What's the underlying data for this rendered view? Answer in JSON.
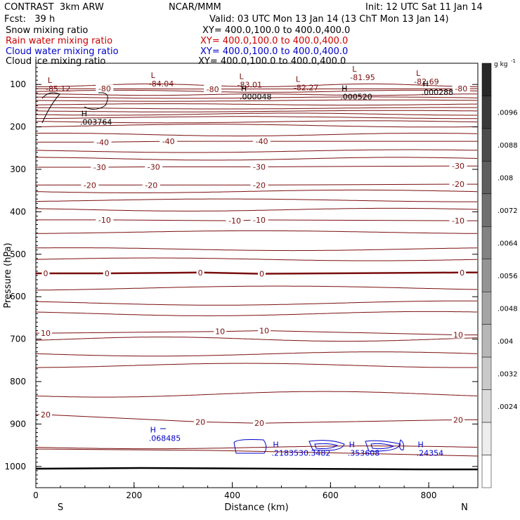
{
  "header": {
    "model": "CONTRAST  3km ARW",
    "center": "NCAR/MMM",
    "init": "Init: 12 UTC Sat 11 Jan 14",
    "fcst": "Fcst:   39 h",
    "valid": "Valid: 03 UTC Mon 13 Jan 14 (13 ChT Mon 13 Jan 14)",
    "fields": [
      {
        "name": "Snow mixing ratio",
        "xy": "XY= 400.0,100.0 to 400.0,400.0",
        "color": "#000000"
      },
      {
        "name": "Rain water mixing ratio",
        "xy": "XY= 400.0,100.0 to 400.0,400.0",
        "color": "#cc0000"
      },
      {
        "name": "Cloud water mixing ratio",
        "xy": "XY= 400.0,100.0 to 400.0,400.0",
        "color": "#0000cc"
      },
      {
        "name": "Cloud ice mixing ratio",
        "xy": "XY= 400.0,100.0 to 400.0,400.0",
        "color": "#000000"
      }
    ]
  },
  "chart_data": {
    "type": "contour-cross-section",
    "xlabel": "Distance (km)",
    "ylabel": "Pressure (hPa)",
    "xlim": [
      0,
      900
    ],
    "ylim": [
      1050,
      50
    ],
    "x_ticks": [
      0,
      200,
      400,
      600,
      800
    ],
    "y_ticks": [
      100,
      200,
      300,
      400,
      500,
      600,
      700,
      800,
      900,
      1000
    ],
    "x_end_labels": {
      "left": "S",
      "right": "N"
    },
    "temperature_color": "#7a0e0e",
    "cloud_color": "#0000cc",
    "isotherms": [
      {
        "level": -80,
        "labels": [
          {
            "x": 140,
            "p": 110,
            "t": "-80"
          },
          {
            "x": 360,
            "p": 111,
            "t": "-80"
          },
          {
            "x": 866,
            "p": 110,
            "t": "-80"
          }
        ]
      },
      {
        "level": -40,
        "labels": [
          {
            "x": 136,
            "p": 236,
            "t": "-40"
          },
          {
            "x": 270,
            "p": 234,
            "t": "-40"
          },
          {
            "x": 460,
            "p": 234,
            "t": "-40"
          }
        ]
      },
      {
        "level": -30,
        "labels": [
          {
            "x": 130,
            "p": 295,
            "t": "-30"
          },
          {
            "x": 240,
            "p": 294,
            "t": "-30"
          },
          {
            "x": 455,
            "p": 294,
            "t": "-30"
          },
          {
            "x": 860,
            "p": 292,
            "t": "-30"
          }
        ]
      },
      {
        "level": -20,
        "labels": [
          {
            "x": 110,
            "p": 337,
            "t": "-20"
          },
          {
            "x": 235,
            "p": 337,
            "t": "-20"
          },
          {
            "x": 455,
            "p": 337,
            "t": "-20"
          },
          {
            "x": 860,
            "p": 335,
            "t": "-20"
          }
        ]
      },
      {
        "level": -10,
        "labels": [
          {
            "x": 140,
            "p": 419,
            "t": "-10"
          },
          {
            "x": 405,
            "p": 421,
            "t": "-10"
          },
          {
            "x": 455,
            "p": 419,
            "t": "-10"
          },
          {
            "x": 860,
            "p": 421,
            "t": "-10"
          }
        ]
      },
      {
        "level": 0,
        "labels": [
          {
            "x": 20,
            "p": 545,
            "t": "0"
          },
          {
            "x": 145,
            "p": 545,
            "t": "0"
          },
          {
            "x": 335,
            "p": 543,
            "t": "0"
          },
          {
            "x": 460,
            "p": 546,
            "t": "0"
          },
          {
            "x": 868,
            "p": 543,
            "t": "0"
          }
        ]
      },
      {
        "level": 10,
        "labels": [
          {
            "x": 20,
            "p": 686,
            "t": "10"
          },
          {
            "x": 375,
            "p": 682,
            "t": "10"
          },
          {
            "x": 465,
            "p": 680,
            "t": "10"
          },
          {
            "x": 860,
            "p": 690,
            "t": "10"
          }
        ]
      },
      {
        "level": 20,
        "labels": [
          {
            "x": 20,
            "p": 878,
            "t": "20"
          },
          {
            "x": 335,
            "p": 895,
            "t": "20"
          },
          {
            "x": 455,
            "p": 898,
            "t": "20"
          },
          {
            "x": 860,
            "p": 890,
            "t": "20"
          }
        ]
      }
    ],
    "extrema": [
      {
        "type": "L",
        "x": 20,
        "p": 96,
        "value": "-85.12",
        "color": "#7a0e0e"
      },
      {
        "type": "L",
        "x": 230,
        "p": 85,
        "value": "-84.04",
        "color": "#7a0e0e"
      },
      {
        "type": "L",
        "x": 410,
        "p": 87,
        "value": "-83.01",
        "color": "#7a0e0e"
      },
      {
        "type": "L",
        "x": 525,
        "p": 94,
        "value": "-82.27",
        "color": "#7a0e0e"
      },
      {
        "type": "L",
        "x": 640,
        "p": 70,
        "value": "-81.95",
        "color": "#7a0e0e"
      },
      {
        "type": "L",
        "x": 770,
        "p": 80,
        "value": "-82.69",
        "color": "#7a0e0e"
      },
      {
        "type": "H",
        "x": 90,
        "p": 175,
        "value": ".003764",
        "color": "#000000"
      },
      {
        "type": "H",
        "x": 415,
        "p": 115,
        "value": ".000048",
        "color": "#000000"
      },
      {
        "type": "H",
        "x": 620,
        "p": 115,
        "value": ".000520",
        "color": "#000000"
      },
      {
        "type": "H",
        "x": 785,
        "p": 105,
        "value": ".000288",
        "color": "#000000"
      },
      {
        "type": "H",
        "x": 230,
        "p": 920,
        "value": ".068485",
        "color": "#0000cc"
      },
      {
        "type": "H",
        "x": 480,
        "p": 955,
        "value": ".2183530.3482",
        "color": "#0000cc"
      },
      {
        "type": "H",
        "x": 635,
        "p": 955,
        "value": ".353608",
        "color": "#0000cc"
      },
      {
        "type": "H",
        "x": 775,
        "p": 955,
        "value": ".24354",
        "color": "#0000cc"
      }
    ],
    "colorbar": {
      "unit": "g kg",
      "unit_exp": "-1",
      "ticks": [
        ".0096",
        ".0088",
        ".008",
        ".0072",
        ".0064",
        ".0056",
        ".0048",
        ".004",
        ".0032",
        ".0024"
      ]
    }
  }
}
